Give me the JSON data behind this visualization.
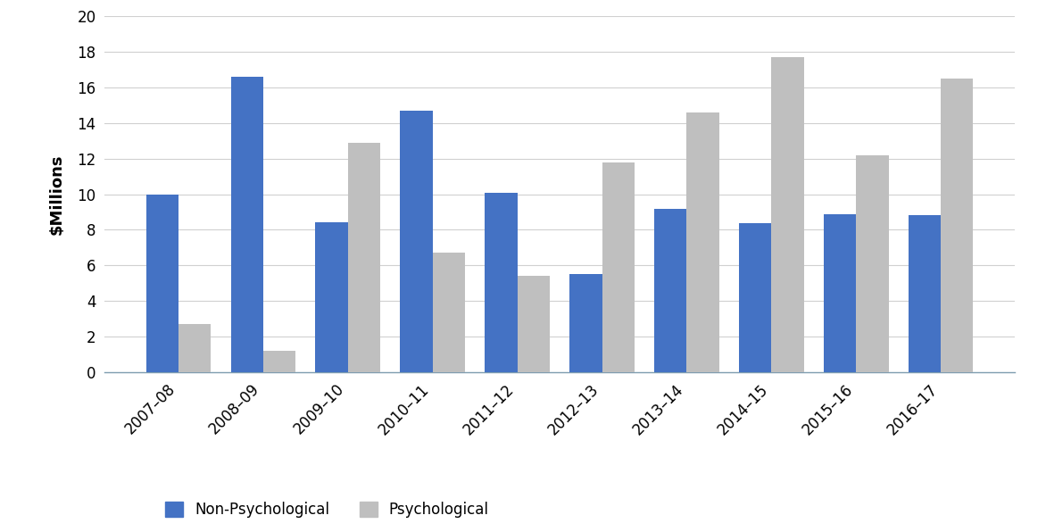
{
  "categories": [
    "2007–08",
    "2008–09",
    "2009–10",
    "2010–11",
    "2011–12",
    "2012–13",
    "2013–14",
    "2014–15",
    "2015–16",
    "2016–17"
  ],
  "non_psychological": [
    10.0,
    16.6,
    8.4,
    14.7,
    10.1,
    5.5,
    9.2,
    8.35,
    8.9,
    8.8
  ],
  "psychological": [
    2.7,
    1.2,
    12.9,
    6.7,
    5.4,
    11.8,
    14.6,
    17.7,
    12.2,
    16.5
  ],
  "non_psych_color": "#4472C4",
  "psych_color": "#BFBFBF",
  "ylabel": "$Millions",
  "ylim": [
    0,
    20
  ],
  "yticks": [
    0,
    2,
    4,
    6,
    8,
    10,
    12,
    14,
    16,
    18,
    20
  ],
  "legend_non_psych": "Non-Psychological",
  "legend_psych": "Psychological",
  "bar_width": 0.38,
  "background_color": "#ffffff",
  "grid_color": "#d0d0d0",
  "label_fontsize": 13,
  "tick_fontsize": 12,
  "legend_fontsize": 12
}
